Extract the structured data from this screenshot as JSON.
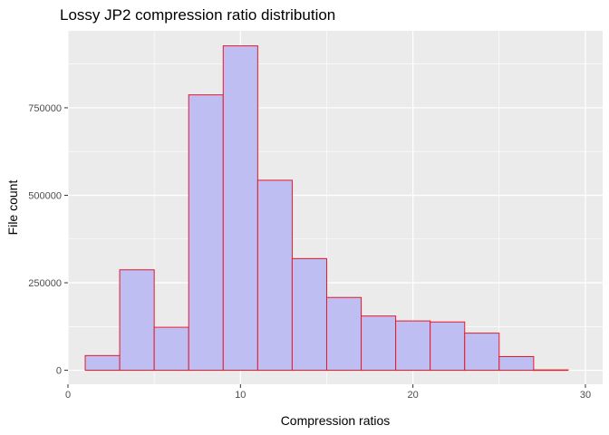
{
  "chart_data": {
    "type": "bar",
    "title": "Lossy JP2 compression ratio distribution",
    "xlabel": "Compression ratios",
    "ylabel": "File count",
    "xlim": [
      0,
      31
    ],
    "ylim": [
      -40000,
      970000
    ],
    "x_ticks": [
      0,
      10,
      20,
      30
    ],
    "y_ticks": [
      0,
      250000,
      500000,
      750000
    ],
    "x_tick_labels": [
      "0",
      "10",
      "20",
      "30"
    ],
    "y_tick_labels": [
      "0",
      "250000",
      "500000",
      "750000"
    ],
    "bin_width": 2,
    "bins": [
      {
        "start": 1,
        "end": 3,
        "value": 42000
      },
      {
        "start": 3,
        "end": 5,
        "value": 287000
      },
      {
        "start": 5,
        "end": 7,
        "value": 123000
      },
      {
        "start": 7,
        "end": 9,
        "value": 787000
      },
      {
        "start": 9,
        "end": 11,
        "value": 927000
      },
      {
        "start": 11,
        "end": 13,
        "value": 543000
      },
      {
        "start": 13,
        "end": 15,
        "value": 319000
      },
      {
        "start": 15,
        "end": 17,
        "value": 208000
      },
      {
        "start": 17,
        "end": 19,
        "value": 155000
      },
      {
        "start": 19,
        "end": 21,
        "value": 141000
      },
      {
        "start": 21,
        "end": 23,
        "value": 138000
      },
      {
        "start": 23,
        "end": 25,
        "value": 106000
      },
      {
        "start": 25,
        "end": 27,
        "value": 39000
      },
      {
        "start": 27,
        "end": 29,
        "value": 1000
      }
    ],
    "fill_color": "#bebef2",
    "border_color": "#e8182a",
    "panel_color": "#ebebeb",
    "grid": true,
    "legend": "none"
  }
}
